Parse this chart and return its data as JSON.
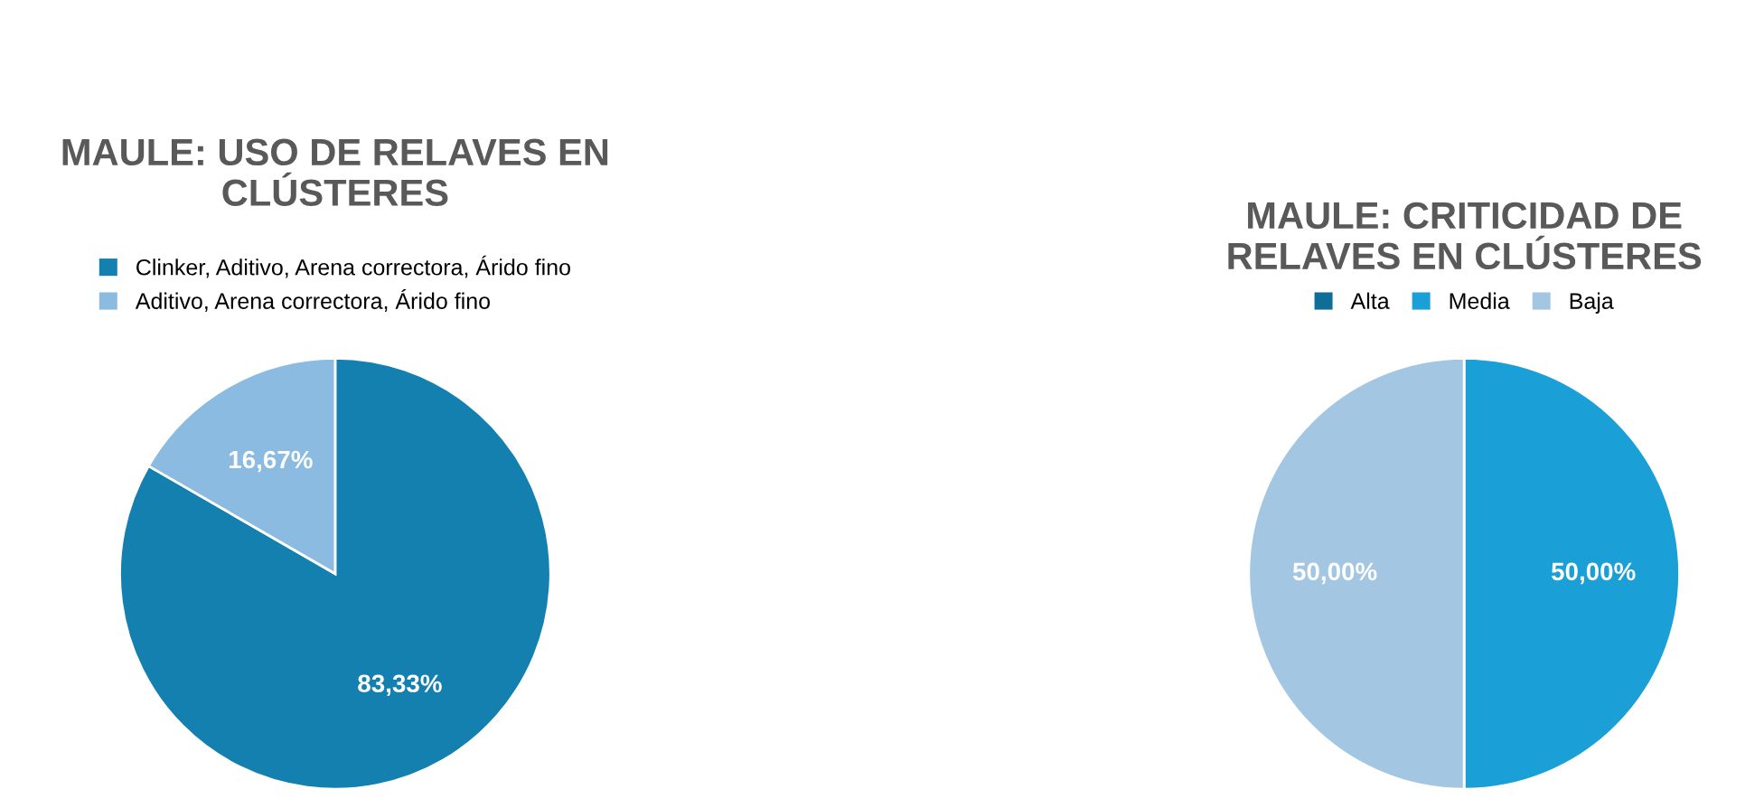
{
  "chart_data": [
    {
      "type": "pie",
      "title": "MAULE: USO DE RELAVES EN\nCLÚSTERES",
      "categories": [
        "Clinker, Aditivo, Arena correctora, Árido fino",
        "Aditivo, Arena correctora, Árido fino"
      ],
      "values": [
        83.33,
        16.67
      ],
      "colors": [
        "#1380b0",
        "#8bbbe0"
      ],
      "value_labels": [
        "83,33%",
        "16,67%"
      ],
      "legend": "top"
    },
    {
      "type": "pie",
      "title": "MAULE: CRITICIDAD DE\nRELAVES EN CLÚSTERES",
      "categories": [
        "Alta",
        "Media",
        "Baja"
      ],
      "values": [
        0,
        50,
        50
      ],
      "colors": [
        "#0e6e98",
        "#1a9fd6",
        "#a3c6e2"
      ],
      "value_labels": [
        null,
        "50,00%",
        "50,00%"
      ],
      "legend": "top"
    }
  ]
}
